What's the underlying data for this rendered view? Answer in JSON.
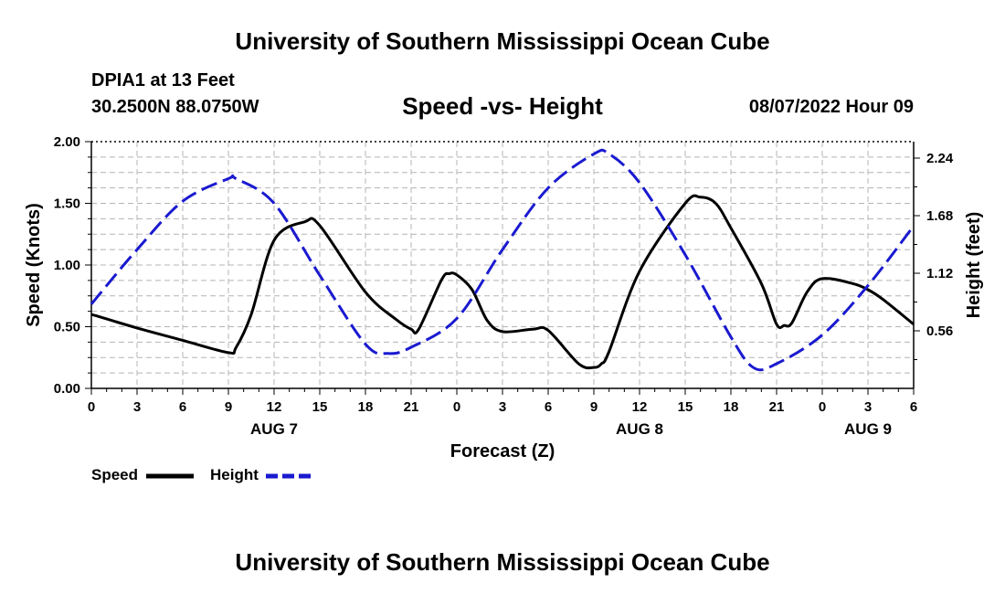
{
  "header": {
    "title": "University of Southern Mississippi Ocean Cube",
    "station": "DPIA1 at 13 Feet",
    "coordinates": "30.2500N  88.0750W",
    "chart_title": "Speed -vs- Height",
    "datestamp": "08/07/2022 Hour 09"
  },
  "footer": {
    "title": "University of Southern Mississippi Ocean Cube"
  },
  "colors": {
    "speed": "#000000",
    "height": "#1a1ad0",
    "grid": "#b4b4b4"
  },
  "chart_data": {
    "type": "line",
    "title": "Speed -vs- Height",
    "xlabel": "Forecast (Z)",
    "ylabel": "Speed (Knots)",
    "y2label": "Height (feet)",
    "xlim": [
      0,
      54
    ],
    "ylim": [
      0,
      2
    ],
    "y2lim": [
      0,
      2.4
    ],
    "xticks": [
      0,
      3,
      6,
      9,
      12,
      15,
      18,
      21,
      24,
      27,
      30,
      33,
      36,
      39,
      42,
      45,
      48,
      51,
      54
    ],
    "xtick_labels": [
      "0",
      "3",
      "6",
      "9",
      "12",
      "15",
      "18",
      "21",
      "0",
      "3",
      "6",
      "9",
      "12",
      "15",
      "18",
      "21",
      "0",
      "3",
      "6"
    ],
    "yticks": [
      0,
      0.5,
      1,
      1.5,
      2
    ],
    "ytick_labels": [
      "0.00",
      "0.50",
      "1.00",
      "1.50",
      "2.00"
    ],
    "y2ticks": [
      0.56,
      1.12,
      1.68,
      2.24
    ],
    "y2tick_labels": [
      "0.56",
      "1.12",
      "1.68",
      "2.24"
    ],
    "day_labels": [
      {
        "x": 12,
        "label": "AUG 7"
      },
      {
        "x": 36,
        "label": "AUG 8"
      },
      {
        "x": 51,
        "label": "AUG 9"
      }
    ],
    "legend": {
      "position": "bottom-left",
      "entries": [
        "Speed",
        "Height"
      ]
    },
    "series": [
      {
        "name": "Speed",
        "axis": "left",
        "style": "solid",
        "x": [
          0,
          3,
          6,
          9,
          9.5,
          10.5,
          12,
          14,
          15,
          18,
          20,
          21,
          21.5,
          23,
          23.5,
          24,
          25,
          26,
          27,
          29,
          30,
          32,
          33,
          33.5,
          34,
          36,
          39,
          40,
          41,
          42,
          44,
          45,
          45.5,
          46,
          47,
          48,
          50,
          51,
          52,
          54
        ],
        "values": [
          0.6,
          0.49,
          0.39,
          0.29,
          0.33,
          0.6,
          1.2,
          1.35,
          1.32,
          0.78,
          0.56,
          0.48,
          0.48,
          0.88,
          0.93,
          0.92,
          0.8,
          0.55,
          0.46,
          0.48,
          0.47,
          0.2,
          0.17,
          0.2,
          0.3,
          0.95,
          1.5,
          1.55,
          1.5,
          1.3,
          0.85,
          0.52,
          0.51,
          0.53,
          0.78,
          0.89,
          0.85,
          0.8,
          0.72,
          0.52
        ]
      },
      {
        "name": "Height",
        "axis": "right",
        "style": "dashed",
        "x": [
          0,
          3,
          6,
          9,
          9.5,
          12,
          15,
          18,
          19.5,
          21,
          24,
          27,
          30,
          33,
          34,
          36,
          39,
          42,
          43.5,
          45,
          48,
          51,
          54
        ],
        "values": [
          0.82,
          1.35,
          1.82,
          2.04,
          2.04,
          1.8,
          1.1,
          0.43,
          0.34,
          0.4,
          0.68,
          1.35,
          1.95,
          2.28,
          2.28,
          2.0,
          1.3,
          0.5,
          0.2,
          0.24,
          0.52,
          1.0,
          1.58
        ]
      }
    ]
  }
}
